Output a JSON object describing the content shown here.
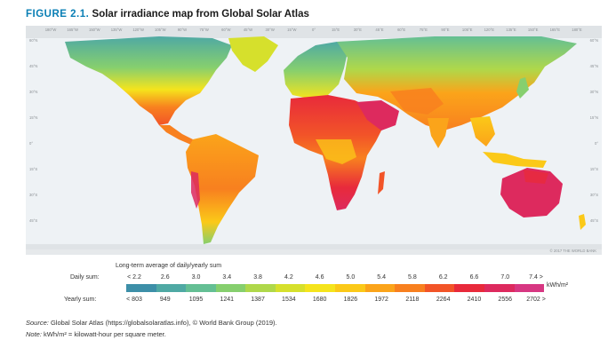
{
  "figure": {
    "label": "FIGURE 2.1.",
    "title": "Solar irradiance map from Global Solar Atlas"
  },
  "map": {
    "lat_labels_left": [
      "60°N",
      "45°N",
      "30°N",
      "15°N",
      "0°",
      "15°S",
      "30°S",
      "45°S"
    ],
    "lat_labels_right": [
      "60°N",
      "45°N",
      "30°N",
      "15°N",
      "0°",
      "15°S",
      "30°S",
      "45°S"
    ],
    "lon_labels": [
      "180°W",
      "165°W",
      "150°W",
      "135°W",
      "120°W",
      "105°W",
      "90°W",
      "75°W",
      "60°W",
      "45°W",
      "30°W",
      "15°W",
      "0°",
      "15°E",
      "30°E",
      "45°E",
      "60°E",
      "75°E",
      "90°E",
      "105°E",
      "120°E",
      "135°E",
      "150°E",
      "165°E",
      "180°E"
    ],
    "copyright": "© 2017 THE WORLD BANK",
    "ocean_color": "#eef2f5",
    "high_latitude_color": "#dfe3e6"
  },
  "legend": {
    "title": "Long-term average of daily/yearly sum",
    "daily_label": "Daily sum:",
    "yearly_label": "Yearly sum:",
    "daily_values": [
      "< 2.2",
      "2.6",
      "3.0",
      "3.4",
      "3.8",
      "4.2",
      "4.6",
      "5.0",
      "5.4",
      "5.8",
      "6.2",
      "6.6",
      "7.0",
      "7.4 >"
    ],
    "yearly_values": [
      "< 803",
      "949",
      "1095",
      "1241",
      "1387",
      "1534",
      "1680",
      "1826",
      "1972",
      "2118",
      "2264",
      "2410",
      "2556",
      "2702 >"
    ],
    "unit": "kWh/m²",
    "colors": [
      "#3d8fa8",
      "#4fa9a4",
      "#64bf94",
      "#86cf6e",
      "#afd84a",
      "#d6e02c",
      "#f5e41c",
      "#fbc918",
      "#fba41a",
      "#f8801f",
      "#f25428",
      "#e82a3b",
      "#dd2a5e",
      "#d73782"
    ]
  },
  "source": {
    "label": "Source:",
    "text": " Global Solar Atlas (https://globalsolaratlas.info), © World Bank Group (2019)."
  },
  "note": {
    "label": "Note:",
    "text": " kWh/m² = kilowatt-hour per square meter."
  }
}
